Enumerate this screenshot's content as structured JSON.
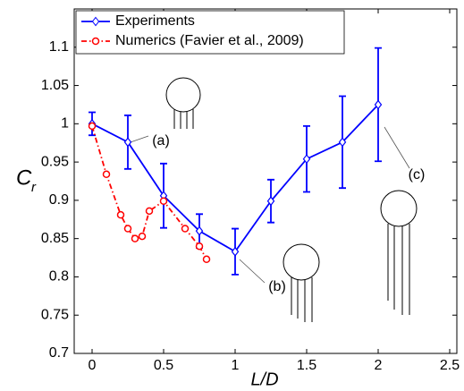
{
  "chart_data": {
    "type": "line",
    "xlabel": "L/D",
    "ylabel": "C",
    "ylabel_sub": "r",
    "xlim": [
      -0.125,
      2.55
    ],
    "ylim": [
      0.7,
      1.15
    ],
    "xticks": [
      0,
      0.5,
      1,
      1.5,
      2,
      2.5
    ],
    "yticks": [
      0.7,
      0.75,
      0.8,
      0.85,
      0.9,
      0.95,
      1,
      1.05,
      1.1
    ],
    "legend": "upper left",
    "series": [
      {
        "name": "Experiments",
        "color": "#0000ff",
        "marker": "diamond",
        "dash": "solid",
        "x": [
          0,
          0.25,
          0.5,
          0.75,
          1,
          1.25,
          1.5,
          1.75,
          2
        ],
        "values": [
          1.0,
          0.976,
          0.906,
          0.86,
          0.833,
          0.899,
          0.954,
          0.976,
          1.025
        ],
        "errors": [
          0.015,
          0.035,
          0.042,
          0.022,
          0.03,
          0.028,
          0.043,
          0.06,
          0.074
        ]
      },
      {
        "name": "Numerics (Favier et al., 2009)",
        "color": "#ff0000",
        "marker": "circle",
        "dash": "dashdot",
        "x": [
          0,
          0.1,
          0.2,
          0.25,
          0.3,
          0.35,
          0.4,
          0.5,
          0.65,
          0.75,
          0.8
        ],
        "values": [
          0.997,
          0.934,
          0.881,
          0.863,
          0.85,
          0.853,
          0.886,
          0.899,
          0.863,
          0.84,
          0.823
        ]
      }
    ],
    "annotations": [
      "(a)",
      "(b)",
      "(c)"
    ]
  }
}
